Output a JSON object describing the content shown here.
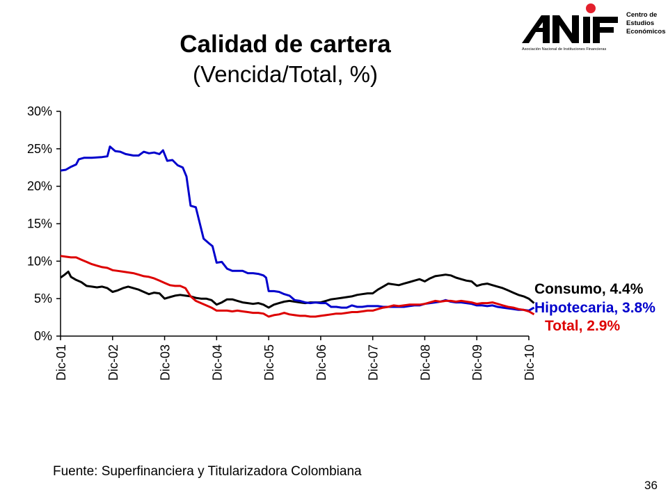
{
  "title": "Calidad de cartera",
  "subtitle": "(Vencida/Total, %)",
  "logo": {
    "text": "ANIF",
    "caption": "Asociación Nacional de Instituciones Financieras",
    "center_line1": "Centro de",
    "center_line2": "Estudios",
    "center_line3": "Económicos",
    "dot_color": "#e3202c"
  },
  "source": "Fuente: Superfinanciera y Titularizadora Colombiana",
  "page_number": "36",
  "chart_data": {
    "type": "line",
    "title": "Calidad de cartera",
    "subtitle": "(Vencida/Total, %)",
    "xlabel": "",
    "ylabel": "",
    "ylim": [
      0,
      30
    ],
    "yticks": [
      0,
      5,
      10,
      15,
      20,
      25,
      30
    ],
    "ytick_labels": [
      "0%",
      "5%",
      "10%",
      "15%",
      "20%",
      "25%",
      "30%"
    ],
    "x_tick_labels": [
      "Dic-01",
      "Dic-02",
      "Dic-03",
      "Dic-04",
      "Dic-05",
      "Dic-06",
      "Dic-07",
      "Dic-08",
      "Dic-09",
      "Dic-10"
    ],
    "x_unit": "years since Dic-01",
    "grid": false,
    "legend_position": "right-end-labels",
    "series": [
      {
        "name": "Consumo",
        "label": "Consumo, 4.4%",
        "color": "#000000",
        "points": [
          [
            0,
            7.8
          ],
          [
            0.08,
            8.2
          ],
          [
            0.15,
            8.6
          ],
          [
            0.2,
            7.9
          ],
          [
            0.3,
            7.5
          ],
          [
            0.4,
            7.2
          ],
          [
            0.5,
            6.7
          ],
          [
            0.6,
            6.6
          ],
          [
            0.7,
            6.5
          ],
          [
            0.8,
            6.6
          ],
          [
            0.9,
            6.4
          ],
          [
            1.0,
            5.9
          ],
          [
            1.1,
            6.1
          ],
          [
            1.2,
            6.4
          ],
          [
            1.3,
            6.6
          ],
          [
            1.4,
            6.4
          ],
          [
            1.5,
            6.2
          ],
          [
            1.6,
            5.9
          ],
          [
            1.7,
            5.6
          ],
          [
            1.8,
            5.8
          ],
          [
            1.9,
            5.7
          ],
          [
            2.0,
            5.0
          ],
          [
            2.1,
            5.2
          ],
          [
            2.2,
            5.4
          ],
          [
            2.3,
            5.5
          ],
          [
            2.4,
            5.4
          ],
          [
            2.5,
            5.3
          ],
          [
            2.6,
            5.1
          ],
          [
            2.7,
            5.0
          ],
          [
            2.8,
            5.0
          ],
          [
            2.9,
            4.8
          ],
          [
            3.0,
            4.2
          ],
          [
            3.1,
            4.5
          ],
          [
            3.2,
            4.9
          ],
          [
            3.3,
            4.9
          ],
          [
            3.4,
            4.7
          ],
          [
            3.5,
            4.5
          ],
          [
            3.6,
            4.4
          ],
          [
            3.7,
            4.3
          ],
          [
            3.8,
            4.4
          ],
          [
            3.9,
            4.2
          ],
          [
            4.0,
            3.8
          ],
          [
            4.1,
            4.2
          ],
          [
            4.2,
            4.4
          ],
          [
            4.3,
            4.6
          ],
          [
            4.4,
            4.7
          ],
          [
            4.5,
            4.6
          ],
          [
            4.6,
            4.5
          ],
          [
            4.7,
            4.4
          ],
          [
            4.8,
            4.5
          ],
          [
            4.9,
            4.5
          ],
          [
            5.0,
            4.5
          ],
          [
            5.1,
            4.7
          ],
          [
            5.2,
            4.9
          ],
          [
            5.3,
            5.0
          ],
          [
            5.4,
            5.1
          ],
          [
            5.5,
            5.2
          ],
          [
            5.6,
            5.3
          ],
          [
            5.7,
            5.5
          ],
          [
            5.8,
            5.6
          ],
          [
            5.9,
            5.7
          ],
          [
            6.0,
            5.7
          ],
          [
            6.1,
            6.2
          ],
          [
            6.2,
            6.6
          ],
          [
            6.3,
            7.0
          ],
          [
            6.4,
            6.9
          ],
          [
            6.5,
            6.8
          ],
          [
            6.6,
            7.0
          ],
          [
            6.7,
            7.2
          ],
          [
            6.8,
            7.4
          ],
          [
            6.9,
            7.6
          ],
          [
            7.0,
            7.3
          ],
          [
            7.1,
            7.7
          ],
          [
            7.2,
            8.0
          ],
          [
            7.3,
            8.1
          ],
          [
            7.4,
            8.2
          ],
          [
            7.5,
            8.1
          ],
          [
            7.6,
            7.8
          ],
          [
            7.7,
            7.6
          ],
          [
            7.8,
            7.4
          ],
          [
            7.9,
            7.3
          ],
          [
            8.0,
            6.7
          ],
          [
            8.1,
            6.9
          ],
          [
            8.2,
            7.0
          ],
          [
            8.3,
            6.8
          ],
          [
            8.4,
            6.6
          ],
          [
            8.5,
            6.4
          ],
          [
            8.6,
            6.1
          ],
          [
            8.7,
            5.8
          ],
          [
            8.8,
            5.5
          ],
          [
            8.9,
            5.3
          ],
          [
            9.0,
            5.0
          ],
          [
            9.05,
            4.7
          ],
          [
            9.1,
            4.4
          ]
        ]
      },
      {
        "name": "Hipotecaria",
        "label": "Hipotecaria, 3.8%",
        "color": "#0000cc",
        "points": [
          [
            0,
            22.1
          ],
          [
            0.1,
            22.2
          ],
          [
            0.2,
            22.6
          ],
          [
            0.3,
            22.9
          ],
          [
            0.35,
            23.6
          ],
          [
            0.45,
            23.8
          ],
          [
            0.6,
            23.8
          ],
          [
            0.8,
            23.9
          ],
          [
            0.9,
            24.0
          ],
          [
            0.95,
            25.3
          ],
          [
            1.05,
            24.7
          ],
          [
            1.15,
            24.6
          ],
          [
            1.25,
            24.3
          ],
          [
            1.4,
            24.1
          ],
          [
            1.5,
            24.1
          ],
          [
            1.6,
            24.6
          ],
          [
            1.7,
            24.4
          ],
          [
            1.8,
            24.5
          ],
          [
            1.9,
            24.3
          ],
          [
            1.97,
            24.8
          ],
          [
            2.05,
            23.4
          ],
          [
            2.15,
            23.5
          ],
          [
            2.25,
            22.8
          ],
          [
            2.35,
            22.5
          ],
          [
            2.42,
            21.3
          ],
          [
            2.5,
            17.4
          ],
          [
            2.6,
            17.2
          ],
          [
            2.75,
            13.0
          ],
          [
            2.85,
            12.4
          ],
          [
            2.92,
            12.0
          ],
          [
            3.0,
            9.8
          ],
          [
            3.1,
            9.9
          ],
          [
            3.2,
            9.0
          ],
          [
            3.3,
            8.7
          ],
          [
            3.5,
            8.7
          ],
          [
            3.6,
            8.4
          ],
          [
            3.7,
            8.4
          ],
          [
            3.8,
            8.3
          ],
          [
            3.9,
            8.1
          ],
          [
            3.95,
            7.8
          ],
          [
            4.0,
            6.0
          ],
          [
            4.1,
            6.0
          ],
          [
            4.2,
            5.9
          ],
          [
            4.3,
            5.6
          ],
          [
            4.4,
            5.4
          ],
          [
            4.5,
            4.8
          ],
          [
            4.6,
            4.7
          ],
          [
            4.7,
            4.5
          ],
          [
            4.8,
            4.4
          ],
          [
            4.9,
            4.5
          ],
          [
            5.0,
            4.4
          ],
          [
            5.1,
            4.4
          ],
          [
            5.2,
            3.9
          ],
          [
            5.3,
            3.9
          ],
          [
            5.4,
            3.8
          ],
          [
            5.5,
            3.8
          ],
          [
            5.6,
            4.1
          ],
          [
            5.7,
            3.9
          ],
          [
            5.8,
            3.9
          ],
          [
            5.9,
            4.0
          ],
          [
            6.0,
            4.0
          ],
          [
            6.1,
            4.0
          ],
          [
            6.2,
            3.9
          ],
          [
            6.3,
            3.9
          ],
          [
            6.4,
            3.9
          ],
          [
            6.5,
            3.9
          ],
          [
            6.6,
            3.9
          ],
          [
            6.7,
            4.0
          ],
          [
            6.8,
            4.1
          ],
          [
            6.9,
            4.1
          ],
          [
            7.0,
            4.3
          ],
          [
            7.1,
            4.4
          ],
          [
            7.2,
            4.5
          ],
          [
            7.3,
            4.6
          ],
          [
            7.4,
            4.8
          ],
          [
            7.5,
            4.6
          ],
          [
            7.6,
            4.5
          ],
          [
            7.7,
            4.5
          ],
          [
            7.8,
            4.4
          ],
          [
            7.9,
            4.3
          ],
          [
            8.0,
            4.1
          ],
          [
            8.1,
            4.1
          ],
          [
            8.2,
            4.0
          ],
          [
            8.3,
            4.1
          ],
          [
            8.4,
            3.9
          ],
          [
            8.5,
            3.8
          ],
          [
            8.6,
            3.7
          ],
          [
            8.7,
            3.6
          ],
          [
            8.8,
            3.5
          ],
          [
            8.9,
            3.5
          ],
          [
            9.0,
            3.4
          ],
          [
            9.05,
            3.6
          ],
          [
            9.1,
            3.8
          ]
        ]
      },
      {
        "name": "Total",
        "label": "Total, 2.9%",
        "color": "#dd0000",
        "points": [
          [
            0,
            10.7
          ],
          [
            0.1,
            10.6
          ],
          [
            0.2,
            10.5
          ],
          [
            0.3,
            10.5
          ],
          [
            0.4,
            10.2
          ],
          [
            0.5,
            9.9
          ],
          [
            0.6,
            9.6
          ],
          [
            0.7,
            9.4
          ],
          [
            0.8,
            9.2
          ],
          [
            0.9,
            9.1
          ],
          [
            1.0,
            8.8
          ],
          [
            1.1,
            8.7
          ],
          [
            1.2,
            8.6
          ],
          [
            1.3,
            8.5
          ],
          [
            1.4,
            8.4
          ],
          [
            1.5,
            8.2
          ],
          [
            1.6,
            8.0
          ],
          [
            1.7,
            7.9
          ],
          [
            1.8,
            7.7
          ],
          [
            1.9,
            7.4
          ],
          [
            2.0,
            7.1
          ],
          [
            2.1,
            6.8
          ],
          [
            2.2,
            6.7
          ],
          [
            2.3,
            6.7
          ],
          [
            2.4,
            6.4
          ],
          [
            2.5,
            5.3
          ],
          [
            2.6,
            4.7
          ],
          [
            2.7,
            4.4
          ],
          [
            2.8,
            4.1
          ],
          [
            2.9,
            3.8
          ],
          [
            3.0,
            3.4
          ],
          [
            3.1,
            3.4
          ],
          [
            3.2,
            3.4
          ],
          [
            3.3,
            3.3
          ],
          [
            3.4,
            3.4
          ],
          [
            3.5,
            3.3
          ],
          [
            3.6,
            3.2
          ],
          [
            3.7,
            3.1
          ],
          [
            3.8,
            3.1
          ],
          [
            3.9,
            3.0
          ],
          [
            4.0,
            2.6
          ],
          [
            4.1,
            2.8
          ],
          [
            4.2,
            2.9
          ],
          [
            4.3,
            3.1
          ],
          [
            4.4,
            2.9
          ],
          [
            4.5,
            2.8
          ],
          [
            4.6,
            2.7
          ],
          [
            4.7,
            2.7
          ],
          [
            4.8,
            2.6
          ],
          [
            4.9,
            2.6
          ],
          [
            5.0,
            2.7
          ],
          [
            5.1,
            2.8
          ],
          [
            5.2,
            2.9
          ],
          [
            5.3,
            3.0
          ],
          [
            5.4,
            3.0
          ],
          [
            5.5,
            3.1
          ],
          [
            5.6,
            3.2
          ],
          [
            5.7,
            3.2
          ],
          [
            5.8,
            3.3
          ],
          [
            5.9,
            3.4
          ],
          [
            6.0,
            3.4
          ],
          [
            6.1,
            3.6
          ],
          [
            6.2,
            3.8
          ],
          [
            6.3,
            3.9
          ],
          [
            6.4,
            4.1
          ],
          [
            6.5,
            4.0
          ],
          [
            6.6,
            4.1
          ],
          [
            6.7,
            4.2
          ],
          [
            6.8,
            4.2
          ],
          [
            6.9,
            4.2
          ],
          [
            7.0,
            4.3
          ],
          [
            7.1,
            4.5
          ],
          [
            7.2,
            4.7
          ],
          [
            7.3,
            4.6
          ],
          [
            7.4,
            4.7
          ],
          [
            7.5,
            4.7
          ],
          [
            7.6,
            4.6
          ],
          [
            7.7,
            4.7
          ],
          [
            7.8,
            4.6
          ],
          [
            7.9,
            4.5
          ],
          [
            8.0,
            4.3
          ],
          [
            8.1,
            4.4
          ],
          [
            8.2,
            4.4
          ],
          [
            8.3,
            4.5
          ],
          [
            8.4,
            4.3
          ],
          [
            8.5,
            4.1
          ],
          [
            8.6,
            3.9
          ],
          [
            8.7,
            3.8
          ],
          [
            8.8,
            3.6
          ],
          [
            8.9,
            3.5
          ],
          [
            9.0,
            3.3
          ],
          [
            9.05,
            3.1
          ],
          [
            9.1,
            2.9
          ]
        ]
      }
    ]
  }
}
